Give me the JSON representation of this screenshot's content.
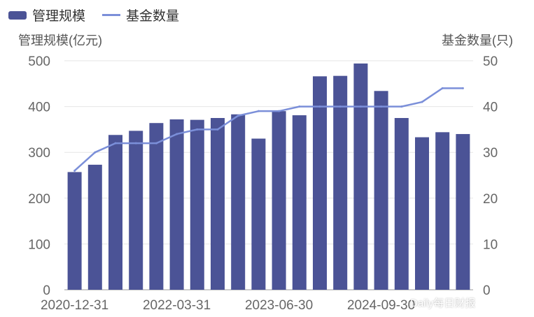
{
  "legend": {
    "bar_label": "管理规模",
    "line_label": "基金数量"
  },
  "axis_titles": {
    "left": "管理规模(亿元)",
    "right": "基金数量(只)"
  },
  "watermark": "Daily每日财报",
  "colors": {
    "bar": "#4b5396",
    "line": "#7b8fd9",
    "grid": "#e6e6e6",
    "axis_text": "#666666"
  },
  "chart_data": {
    "type": "bar",
    "x_ticks": [
      "2020-12-31",
      "2022-03-31",
      "2023-06-30",
      "2024-09-30"
    ],
    "series": [
      {
        "name": "管理规模",
        "type": "bar",
        "axis": "left",
        "values": [
          257,
          273,
          338,
          347,
          364,
          372,
          371,
          375,
          383,
          330,
          390,
          381,
          466,
          467,
          494,
          434,
          375,
          333,
          344,
          340
        ]
      },
      {
        "name": "基金数量",
        "type": "line",
        "axis": "right",
        "values": [
          26,
          30,
          32,
          32,
          32,
          34,
          35,
          35,
          38,
          39,
          39,
          40,
          40,
          40,
          40,
          40,
          40,
          41,
          44,
          44
        ]
      }
    ],
    "y_left": {
      "label": "管理规模(亿元)",
      "lim": [
        0,
        500
      ],
      "ticks": [
        0,
        100,
        200,
        300,
        400,
        500
      ]
    },
    "y_right": {
      "label": "基金数量(只)",
      "lim": [
        0,
        50
      ],
      "ticks": [
        0,
        10,
        20,
        30,
        40,
        50
      ]
    },
    "grid": true,
    "legend_position": "top-left"
  }
}
